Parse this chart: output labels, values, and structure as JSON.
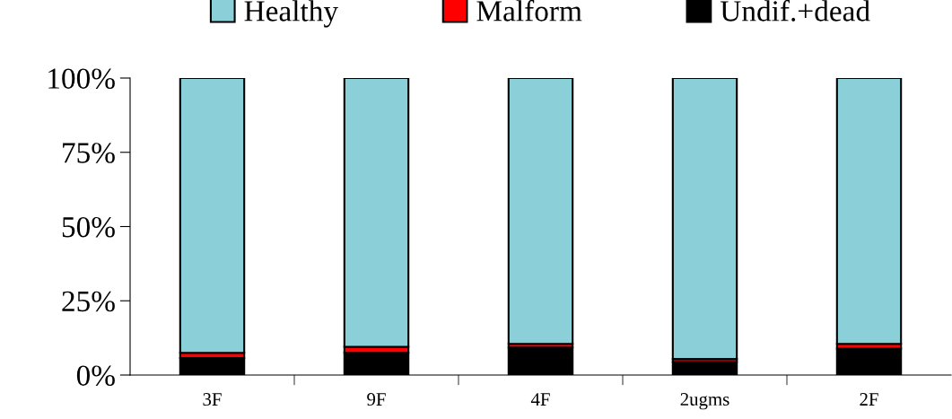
{
  "chart_data": {
    "type": "bar",
    "stacked": true,
    "categories": [
      "3F",
      "9F",
      "4F",
      "2ugms",
      "2F"
    ],
    "series": [
      {
        "name": "Undif.+dead",
        "color": "#000000",
        "values": [
          5.7,
          7.5,
          9.3,
          4.4,
          8.9
        ]
      },
      {
        "name": "Malform",
        "color": "#ff0000",
        "values": [
          1.8,
          2,
          1.2,
          1,
          1.6
        ]
      },
      {
        "name": "Healthy",
        "color": "#8bd0d8",
        "values": [
          92.5,
          90.5,
          89.5,
          94.6,
          89.5
        ]
      }
    ],
    "ylim": [
      0,
      100
    ],
    "yticks": [
      {
        "value": 0,
        "label": "0%"
      },
      {
        "value": 25,
        "label": "25%"
      },
      {
        "value": 50,
        "label": "50%"
      },
      {
        "value": 75,
        "label": "75%"
      },
      {
        "value": 100,
        "label": "100%"
      }
    ],
    "grid": false,
    "legend": "top"
  }
}
